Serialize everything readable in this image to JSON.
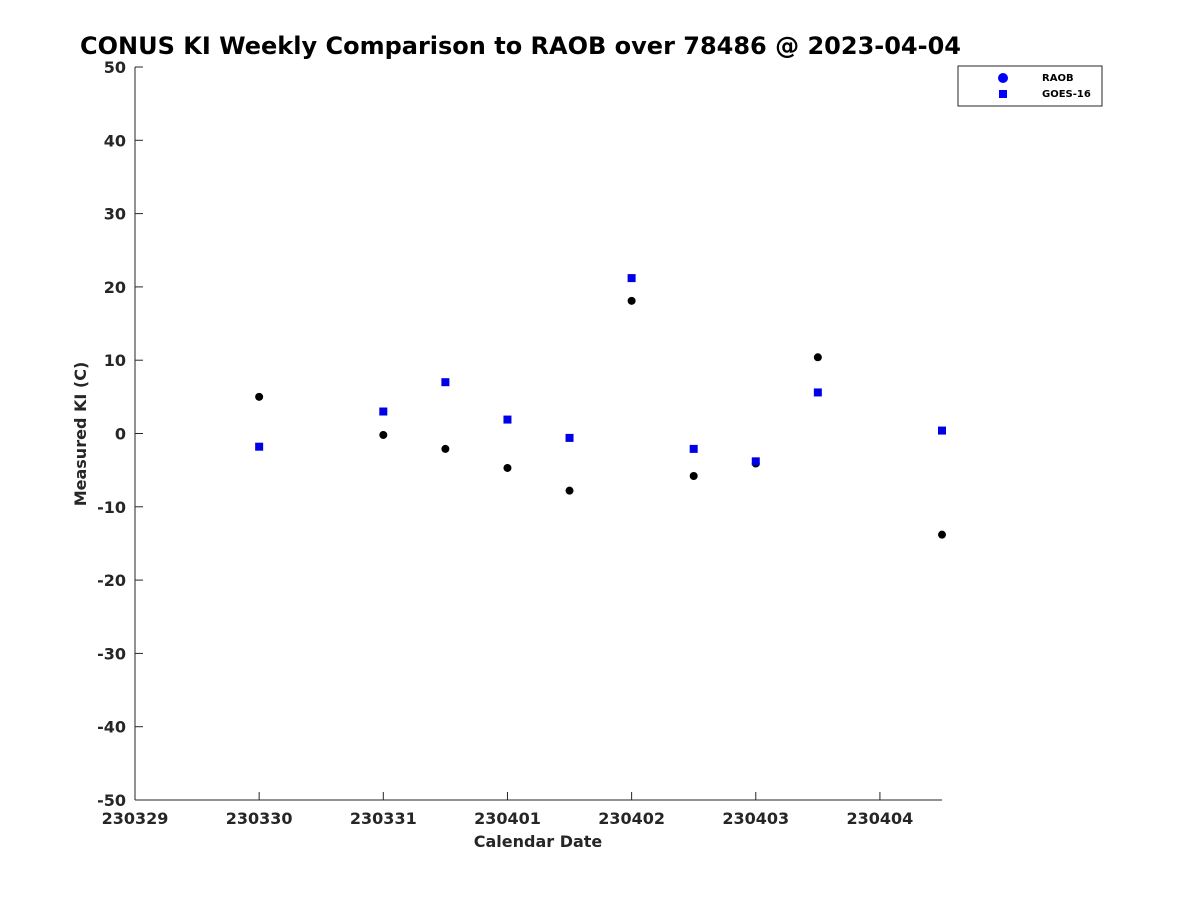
{
  "chart_data": {
    "type": "scatter",
    "title": "CONUS KI Weekly Comparison to RAOB over 78486 @ 2023-04-04",
    "xlabel": "Calendar Date",
    "ylabel": "Measured KI (C)",
    "xlim": [
      0,
      6.5
    ],
    "ylim": [
      -50,
      50
    ],
    "x_ticks": [
      {
        "value": 0,
        "label": "230329"
      },
      {
        "value": 1,
        "label": "230330"
      },
      {
        "value": 2,
        "label": "230331"
      },
      {
        "value": 3,
        "label": "230401"
      },
      {
        "value": 4,
        "label": "230402"
      },
      {
        "value": 5,
        "label": "230403"
      },
      {
        "value": 6,
        "label": "230404"
      }
    ],
    "y_ticks": [
      {
        "value": 50,
        "label": "50"
      },
      {
        "value": 40,
        "label": "40"
      },
      {
        "value": 30,
        "label": "30"
      },
      {
        "value": 20,
        "label": "20"
      },
      {
        "value": 10,
        "label": "10"
      },
      {
        "value": 0,
        "label": "0"
      },
      {
        "value": -10,
        "label": "-10"
      },
      {
        "value": -20,
        "label": "-20"
      },
      {
        "value": -30,
        "label": "-30"
      },
      {
        "value": -40,
        "label": "-40"
      },
      {
        "value": -50,
        "label": "-50"
      }
    ],
    "grid": false,
    "legend_position": "top-right",
    "series": [
      {
        "name": "RAOB",
        "marker": "circle",
        "legend_color": "#0000ff",
        "point_color": "#000000",
        "points": [
          {
            "x": 1.0,
            "y": 5.0
          },
          {
            "x": 2.0,
            "y": -0.2
          },
          {
            "x": 2.5,
            "y": -2.1
          },
          {
            "x": 3.0,
            "y": -4.7
          },
          {
            "x": 3.5,
            "y": -7.8
          },
          {
            "x": 4.0,
            "y": 18.1
          },
          {
            "x": 4.5,
            "y": -5.8
          },
          {
            "x": 5.0,
            "y": -4.1
          },
          {
            "x": 5.5,
            "y": 10.4
          },
          {
            "x": 6.5,
            "y": -13.8
          }
        ]
      },
      {
        "name": "GOES-16",
        "marker": "square",
        "legend_color": "#0000ff",
        "point_color": "#0000e6",
        "points": [
          {
            "x": 1.0,
            "y": -1.8
          },
          {
            "x": 2.0,
            "y": 3.0
          },
          {
            "x": 2.5,
            "y": 7.0
          },
          {
            "x": 3.0,
            "y": 1.9
          },
          {
            "x": 3.5,
            "y": -0.6
          },
          {
            "x": 4.0,
            "y": 21.2
          },
          {
            "x": 4.5,
            "y": -2.1
          },
          {
            "x": 5.0,
            "y": -3.8
          },
          {
            "x": 5.5,
            "y": 5.6
          },
          {
            "x": 6.5,
            "y": 0.4
          }
        ]
      }
    ]
  }
}
